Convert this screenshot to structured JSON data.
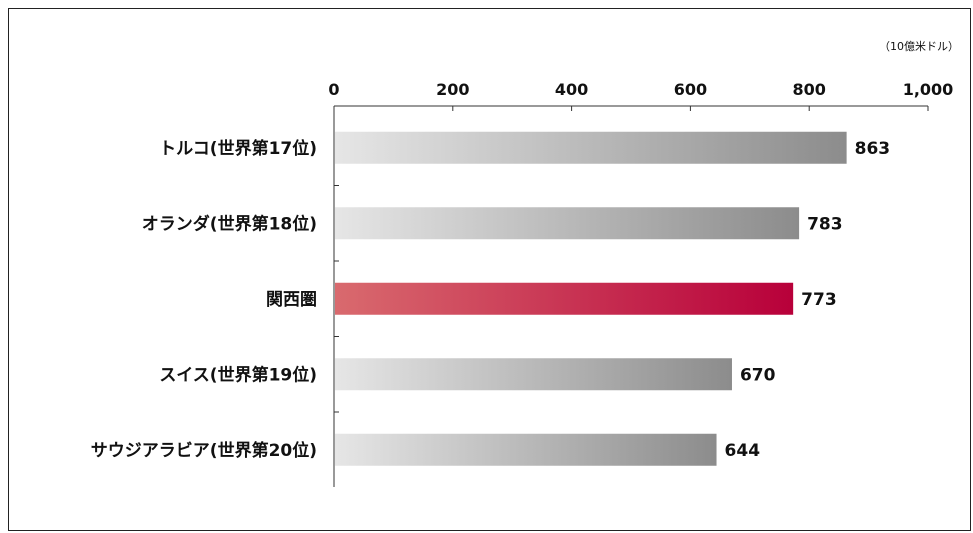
{
  "chart_data": {
    "type": "bar",
    "orientation": "horizontal",
    "unit": "（10億米ドル）",
    "categories": [
      "トルコ(世界第17位)",
      "オランダ(世界第18位)",
      "関西圏",
      "スイス(世界第19位)",
      "サウジアラビア(世界第20位)"
    ],
    "values": [
      863,
      783,
      773,
      670,
      644
    ],
    "value_labels": [
      "863",
      "783",
      "773",
      "670",
      "644"
    ],
    "highlighted": "関西圏",
    "xlim": [
      0,
      1000
    ],
    "ticks": [
      0,
      200,
      400,
      600,
      800,
      1000
    ],
    "tick_labels": [
      "0",
      "200",
      "400",
      "600",
      "800",
      "1,000"
    ],
    "axis_position": "top",
    "grid": false,
    "colors": {
      "bar_gradient": [
        "#e6e6e6",
        "#8c8c8c"
      ],
      "highlight_gradient": [
        "#d96a6e",
        "#b8003a"
      ]
    }
  }
}
